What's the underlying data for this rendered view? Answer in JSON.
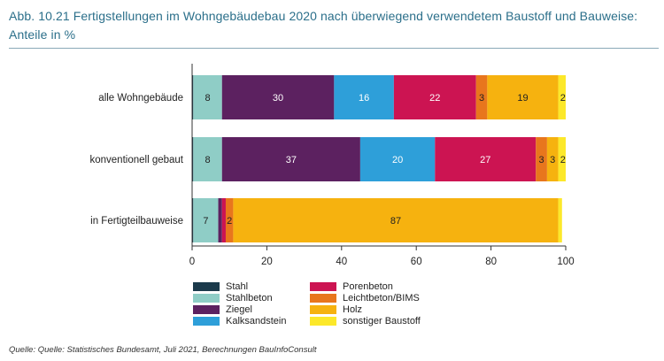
{
  "title": "Abb. 10.21 Fertigstellungen im Wohngebäudebau 2020 nach überwiegend verwendetem Baustoff und Bauweise: Anteile in %",
  "source": "Quelle: Quelle: Statistisches Bundesamt, Juli 2021, Berechnungen BauInfoConsult",
  "chart_data": {
    "type": "bar",
    "orientation": "horizontal",
    "stacked": true,
    "categories": [
      "alle Wohngebäude",
      "konventionell gebaut",
      "in Fertigteilbauweise"
    ],
    "series": [
      {
        "name": "Stahl",
        "color": "#1b3a4b",
        "values": [
          0.3,
          0.3,
          0.3
        ],
        "labels": [
          "",
          "",
          ""
        ]
      },
      {
        "name": "Stahlbeton",
        "color": "#8fcdc6",
        "values": [
          7.7,
          7.7,
          6.7
        ],
        "labels": [
          "8",
          "8",
          "7"
        ]
      },
      {
        "name": "Ziegel",
        "color": "#5c2160",
        "values": [
          30,
          37,
          1
        ],
        "labels": [
          "30",
          "37",
          ""
        ]
      },
      {
        "name": "Kalksandstein",
        "color": "#2e9fd9",
        "values": [
          16,
          20,
          0
        ],
        "labels": [
          "16",
          "20",
          ""
        ]
      },
      {
        "name": "Porenbeton",
        "color": "#cc1452",
        "values": [
          22,
          27,
          1
        ],
        "labels": [
          "22",
          "27",
          ""
        ]
      },
      {
        "name": "Leichtbeton/BIMS",
        "color": "#e8761d",
        "values": [
          3,
          3,
          2
        ],
        "labels": [
          "3",
          "3",
          "2"
        ]
      },
      {
        "name": "Holz",
        "color": "#f6b20f",
        "values": [
          19,
          3,
          87
        ],
        "labels": [
          "19",
          "3",
          "87"
        ]
      },
      {
        "name": "sonstiger Baustoff",
        "color": "#fce82a",
        "values": [
          2,
          2,
          1
        ],
        "labels": [
          "2",
          "2",
          ""
        ]
      }
    ],
    "xlim": [
      0,
      100
    ],
    "xticks": [
      "0",
      "20",
      "40",
      "60",
      "80",
      "100"
    ],
    "legend_position": "bottom",
    "grid": false
  }
}
